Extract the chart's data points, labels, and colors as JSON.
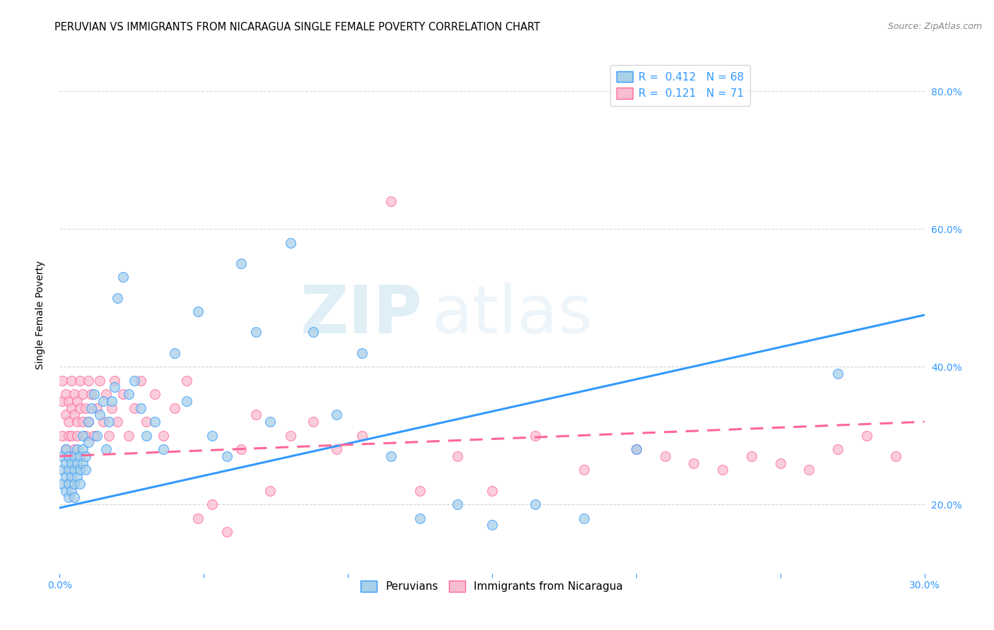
{
  "title": "PERUVIAN VS IMMIGRANTS FROM NICARAGUA SINGLE FEMALE POVERTY CORRELATION CHART",
  "source": "Source: ZipAtlas.com",
  "ylabel": "Single Female Poverty",
  "xlim": [
    0.0,
    0.3
  ],
  "ylim": [
    0.1,
    0.85
  ],
  "peruvians_color": "#a8d0e8",
  "nicaragua_color": "#f9bdd0",
  "trend_blue": "#3399ff",
  "trend_pink": "#ff6699",
  "watermark_zip": "ZIP",
  "watermark_atlas": "atlas",
  "background_color": "#ffffff",
  "grid_color": "#cccccc",
  "title_fontsize": 10.5,
  "axis_label_fontsize": 10,
  "tick_fontsize": 10,
  "blue_trend_x0": 0.0,
  "blue_trend_y0": 0.195,
  "blue_trend_x1": 0.3,
  "blue_trend_y1": 0.475,
  "pink_trend_x0": 0.0,
  "pink_trend_y0": 0.27,
  "pink_trend_x1": 0.3,
  "pink_trend_y1": 0.32,
  "peruvians_x": [
    0.001,
    0.001,
    0.001,
    0.002,
    0.002,
    0.002,
    0.002,
    0.003,
    0.003,
    0.003,
    0.003,
    0.004,
    0.004,
    0.004,
    0.005,
    0.005,
    0.005,
    0.005,
    0.006,
    0.006,
    0.006,
    0.007,
    0.007,
    0.007,
    0.008,
    0.008,
    0.008,
    0.009,
    0.009,
    0.01,
    0.01,
    0.011,
    0.012,
    0.013,
    0.014,
    0.015,
    0.016,
    0.017,
    0.018,
    0.019,
    0.02,
    0.022,
    0.024,
    0.026,
    0.028,
    0.03,
    0.033,
    0.036,
    0.04,
    0.044,
    0.048,
    0.053,
    0.058,
    0.063,
    0.068,
    0.073,
    0.08,
    0.088,
    0.096,
    0.105,
    0.115,
    0.125,
    0.138,
    0.15,
    0.165,
    0.182,
    0.2,
    0.27
  ],
  "peruvians_y": [
    0.27,
    0.25,
    0.23,
    0.26,
    0.24,
    0.22,
    0.28,
    0.25,
    0.23,
    0.27,
    0.21,
    0.24,
    0.26,
    0.22,
    0.25,
    0.23,
    0.27,
    0.21,
    0.26,
    0.24,
    0.28,
    0.25,
    0.27,
    0.23,
    0.26,
    0.28,
    0.3,
    0.25,
    0.27,
    0.29,
    0.32,
    0.34,
    0.36,
    0.3,
    0.33,
    0.35,
    0.28,
    0.32,
    0.35,
    0.37,
    0.5,
    0.53,
    0.36,
    0.38,
    0.34,
    0.3,
    0.32,
    0.28,
    0.42,
    0.35,
    0.48,
    0.3,
    0.27,
    0.55,
    0.45,
    0.32,
    0.58,
    0.45,
    0.33,
    0.42,
    0.27,
    0.18,
    0.2,
    0.17,
    0.2,
    0.18,
    0.28,
    0.39
  ],
  "nicaragua_x": [
    0.001,
    0.001,
    0.001,
    0.002,
    0.002,
    0.002,
    0.003,
    0.003,
    0.003,
    0.004,
    0.004,
    0.004,
    0.005,
    0.005,
    0.005,
    0.006,
    0.006,
    0.006,
    0.007,
    0.007,
    0.008,
    0.008,
    0.009,
    0.009,
    0.01,
    0.01,
    0.011,
    0.012,
    0.013,
    0.014,
    0.015,
    0.016,
    0.017,
    0.018,
    0.019,
    0.02,
    0.022,
    0.024,
    0.026,
    0.028,
    0.03,
    0.033,
    0.036,
    0.04,
    0.044,
    0.048,
    0.053,
    0.058,
    0.063,
    0.068,
    0.073,
    0.08,
    0.088,
    0.096,
    0.105,
    0.115,
    0.125,
    0.138,
    0.15,
    0.165,
    0.182,
    0.2,
    0.21,
    0.22,
    0.23,
    0.24,
    0.25,
    0.26,
    0.27,
    0.28,
    0.29
  ],
  "nicaragua_y": [
    0.35,
    0.3,
    0.38,
    0.33,
    0.28,
    0.36,
    0.32,
    0.35,
    0.3,
    0.34,
    0.38,
    0.3,
    0.33,
    0.36,
    0.28,
    0.32,
    0.35,
    0.3,
    0.34,
    0.38,
    0.32,
    0.36,
    0.3,
    0.34,
    0.38,
    0.32,
    0.36,
    0.3,
    0.34,
    0.38,
    0.32,
    0.36,
    0.3,
    0.34,
    0.38,
    0.32,
    0.36,
    0.3,
    0.34,
    0.38,
    0.32,
    0.36,
    0.3,
    0.34,
    0.38,
    0.18,
    0.2,
    0.16,
    0.28,
    0.33,
    0.22,
    0.3,
    0.32,
    0.28,
    0.3,
    0.64,
    0.22,
    0.27,
    0.22,
    0.3,
    0.25,
    0.28,
    0.27,
    0.26,
    0.25,
    0.27,
    0.26,
    0.25,
    0.28,
    0.3,
    0.27
  ]
}
